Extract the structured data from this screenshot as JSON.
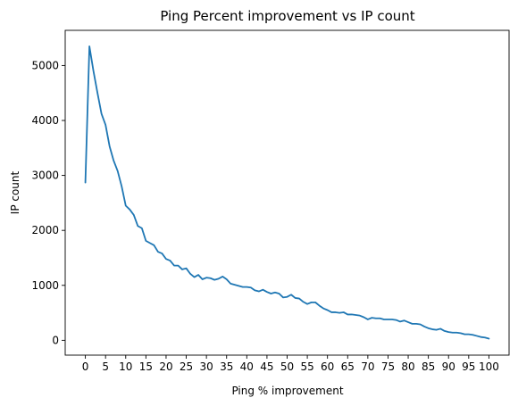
{
  "chart_data": {
    "type": "line",
    "title": "Ping Percent improvement vs IP count",
    "xlabel": "Ping % improvement",
    "ylabel": "IP count",
    "xlim": [
      -5,
      105
    ],
    "ylim": [
      -270,
      5640
    ],
    "xticks": [
      0,
      5,
      10,
      15,
      20,
      25,
      30,
      35,
      40,
      45,
      50,
      55,
      60,
      65,
      70,
      75,
      80,
      85,
      90,
      95,
      100
    ],
    "yticks": [
      0,
      1000,
      2000,
      3000,
      4000,
      5000
    ],
    "grid": false,
    "series": [
      {
        "color": "#1f77b4",
        "x": [
          0,
          1,
          2,
          3,
          4,
          5,
          6,
          7,
          8,
          9,
          10,
          11,
          12,
          13,
          14,
          15,
          16,
          17,
          18,
          19,
          20,
          21,
          22,
          23,
          24,
          25,
          26,
          27,
          28,
          29,
          30,
          31,
          32,
          33,
          34,
          35,
          36,
          37,
          38,
          39,
          40,
          41,
          42,
          43,
          44,
          45,
          46,
          47,
          48,
          49,
          50,
          51,
          52,
          53,
          54,
          55,
          56,
          57,
          58,
          59,
          60,
          61,
          62,
          63,
          64,
          65,
          66,
          67,
          68,
          69,
          70,
          71,
          72,
          73,
          74,
          75,
          76,
          77,
          78,
          79,
          80,
          81,
          82,
          83,
          84,
          85,
          86,
          87,
          88,
          89,
          90,
          91,
          92,
          93,
          94,
          95,
          96,
          97,
          98,
          99,
          100
        ],
        "y": [
          2870,
          5350,
          4900,
          4500,
          4120,
          3920,
          3530,
          3270,
          3080,
          2800,
          2450,
          2380,
          2280,
          2080,
          2040,
          1810,
          1770,
          1730,
          1610,
          1580,
          1480,
          1450,
          1360,
          1360,
          1290,
          1310,
          1210,
          1150,
          1190,
          1110,
          1140,
          1130,
          1100,
          1120,
          1160,
          1110,
          1030,
          1010,
          990,
          970,
          970,
          960,
          910,
          890,
          920,
          880,
          850,
          870,
          850,
          780,
          790,
          830,
          770,
          760,
          700,
          660,
          690,
          690,
          630,
          580,
          550,
          510,
          510,
          500,
          510,
          470,
          470,
          460,
          450,
          420,
          380,
          410,
          400,
          400,
          380,
          380,
          380,
          370,
          340,
          360,
          330,
          300,
          300,
          290,
          250,
          220,
          200,
          190,
          210,
          170,
          150,
          140,
          140,
          130,
          110,
          110,
          100,
          80,
          60,
          50,
          30
        ]
      }
    ]
  }
}
